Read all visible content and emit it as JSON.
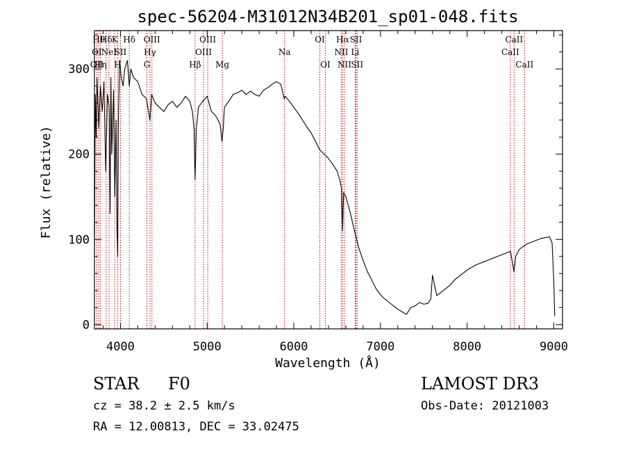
{
  "colors": {
    "spectrum": "#000000",
    "line_marker": "#cc0000",
    "axes": "#000000",
    "background": "#ffffff"
  },
  "chart_data": {
    "type": "line",
    "title": "spec-56204-M31012N34B201_sp01-048.fits",
    "xlabel": "Wavelength (Å)",
    "ylabel": "Flux (relative)",
    "xlim": [
      3700,
      9100
    ],
    "ylim": [
      -5,
      345
    ],
    "x_ticks": [
      4000,
      5000,
      6000,
      7000,
      8000,
      9000
    ],
    "y_ticks": [
      0,
      100,
      200,
      300
    ],
    "grid": false,
    "series": [
      {
        "name": "spectrum",
        "x": [
          3700,
          3710,
          3720,
          3730,
          3750,
          3770,
          3790,
          3810,
          3830,
          3850,
          3870,
          3880,
          3890,
          3900,
          3920,
          3935,
          3950,
          3960,
          3968,
          3975,
          3990,
          4010,
          4030,
          4050,
          4080,
          4102,
          4120,
          4150,
          4200,
          4250,
          4300,
          4340,
          4360,
          4400,
          4450,
          4500,
          4550,
          4600,
          4650,
          4700,
          4750,
          4800,
          4830,
          4850,
          4861,
          4875,
          4900,
          4950,
          5000,
          5050,
          5100,
          5150,
          5172,
          5185,
          5200,
          5250,
          5300,
          5350,
          5400,
          5450,
          5500,
          5550,
          5600,
          5650,
          5700,
          5750,
          5800,
          5850,
          5890,
          5900,
          5950,
          6000,
          6050,
          6100,
          6150,
          6200,
          6250,
          6300,
          6350,
          6400,
          6450,
          6500,
          6530,
          6550,
          6563,
          6575,
          6600,
          6650,
          6700,
          6750,
          6800,
          6850,
          6900,
          6950,
          7000,
          7050,
          7100,
          7150,
          7200,
          7250,
          7300,
          7350,
          7400,
          7450,
          7500,
          7550,
          7580,
          7600,
          7620,
          7650,
          7700,
          7750,
          7800,
          7850,
          7900,
          7950,
          8000,
          8050,
          8100,
          8150,
          8200,
          8250,
          8300,
          8350,
          8400,
          8450,
          8500,
          8540,
          8560,
          8600,
          8650,
          8700,
          8750,
          8800,
          8850,
          8900,
          8950,
          8980,
          9000,
          9010
        ],
        "values": [
          80,
          270,
          220,
          290,
          230,
          280,
          250,
          285,
          180,
          270,
          255,
          130,
          290,
          200,
          275,
          150,
          240,
          110,
          80,
          230,
          310,
          290,
          280,
          300,
          310,
          280,
          300,
          290,
          285,
          270,
          265,
          240,
          270,
          260,
          255,
          250,
          258,
          262,
          255,
          260,
          268,
          262,
          250,
          230,
          170,
          230,
          255,
          262,
          268,
          250,
          245,
          235,
          215,
          230,
          255,
          262,
          270,
          272,
          275,
          270,
          274,
          270,
          268,
          275,
          278,
          282,
          285,
          282,
          265,
          268,
          262,
          255,
          248,
          240,
          232,
          225,
          215,
          205,
          200,
          195,
          188,
          180,
          170,
          160,
          110,
          155,
          150,
          132,
          110,
          90,
          75,
          62,
          52,
          42,
          35,
          30,
          26,
          22,
          18,
          15,
          12,
          20,
          22,
          26,
          24,
          25,
          30,
          58,
          48,
          34,
          38,
          42,
          46,
          52,
          56,
          60,
          64,
          67,
          70,
          72,
          74,
          76,
          78,
          80,
          82,
          84,
          86,
          62,
          80,
          88,
          92,
          95,
          97,
          99,
          101,
          102,
          103,
          96,
          50,
          10
        ]
      }
    ],
    "line_markers": [
      {
        "wavelength": 3727,
        "row1": "",
        "row2": "OI",
        "row3": "OII"
      },
      {
        "wavelength": 3750,
        "row1": "Hθ",
        "row2": "",
        "row3": ""
      },
      {
        "wavelength": 3770,
        "row1": "",
        "row2": "",
        "row3": "Hη"
      },
      {
        "wavelength": 3835,
        "row1": "Hδ",
        "row2": "",
        "row3": ""
      },
      {
        "wavelength": 3868,
        "row1": "",
        "row2": "NeI",
        "row3": ""
      },
      {
        "wavelength": 3934,
        "row1": "K",
        "row2": "",
        "row3": ""
      },
      {
        "wavelength": 3968,
        "row1": "",
        "row2": "",
        "row3": "H"
      },
      {
        "wavelength": 4000,
        "row1": "",
        "row2": "SII",
        "row3": ""
      },
      {
        "wavelength": 4102,
        "row1": "Hδ",
        "row2": "",
        "row3": ""
      },
      {
        "wavelength": 4305,
        "row1": "",
        "row2": "",
        "row3": "G"
      },
      {
        "wavelength": 4340,
        "row1": "",
        "row2": "Hγ",
        "row3": ""
      },
      {
        "wavelength": 4363,
        "row1": "OIII",
        "row2": "",
        "row3": ""
      },
      {
        "wavelength": 4861,
        "row1": "",
        "row2": "",
        "row3": "Hβ"
      },
      {
        "wavelength": 4959,
        "row1": "",
        "row2": "OIII",
        "row3": ""
      },
      {
        "wavelength": 5007,
        "row1": "OIII",
        "row2": "",
        "row3": ""
      },
      {
        "wavelength": 5175,
        "row1": "",
        "row2": "",
        "row3": "Mg"
      },
      {
        "wavelength": 5893,
        "row1": "",
        "row2": "Na",
        "row3": ""
      },
      {
        "wavelength": 6300,
        "row1": "OI",
        "row2": "",
        "row3": ""
      },
      {
        "wavelength": 6364,
        "row1": "",
        "row2": "",
        "row3": "OI"
      },
      {
        "wavelength": 6548,
        "row1": "",
        "row2": "NII",
        "row3": ""
      },
      {
        "wavelength": 6563,
        "row1": "Hα",
        "row2": "",
        "row3": ""
      },
      {
        "wavelength": 6584,
        "row1": "",
        "row2": "",
        "row3": "NII"
      },
      {
        "wavelength": 6708,
        "row1": "",
        "row2": "Li",
        "row3": ""
      },
      {
        "wavelength": 6717,
        "row1": "SII",
        "row2": "",
        "row3": ""
      },
      {
        "wavelength": 6731,
        "row1": "",
        "row2": "",
        "row3": "SII"
      },
      {
        "wavelength": 8498,
        "row1": "",
        "row2": "CaII",
        "row3": ""
      },
      {
        "wavelength": 8542,
        "row1": "CaII",
        "row2": "",
        "row3": ""
      },
      {
        "wavelength": 8662,
        "row1": "",
        "row2": "",
        "row3": "CaII"
      }
    ]
  },
  "info": {
    "object_class": "STAR",
    "subclass": "F0",
    "redshift_text": "cz = 38.2 ± 2.5 km/s",
    "coords_text": "RA =  12.00813, DEC =  33.02475",
    "survey": "LAMOST DR3",
    "obs_date_text": "Obs-Date: 20121003"
  }
}
